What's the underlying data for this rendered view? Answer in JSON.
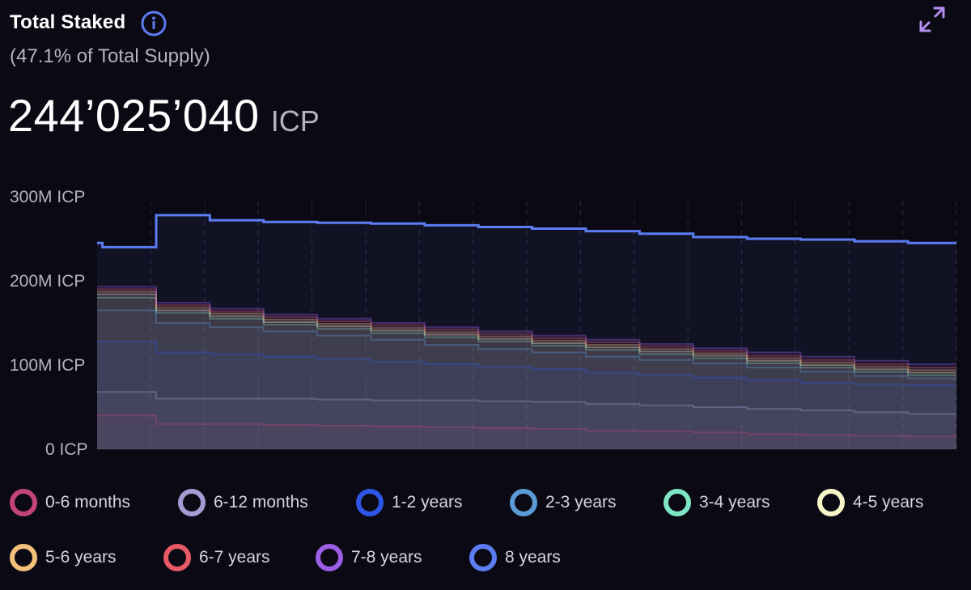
{
  "header": {
    "title": "Total Staked",
    "subtitle": "(47.1% of Total Supply)",
    "value": "244’025’040",
    "unit": "ICP",
    "info_icon": "info-icon",
    "expand_icon": "expand-icon"
  },
  "colors": {
    "background": "#0b0a14",
    "total_line": "#5b7cf2",
    "grid": "#2a2938"
  },
  "legend": [
    {
      "label": "0-6 months",
      "color": "#c2437a"
    },
    {
      "label": "6-12 months",
      "color": "#a59bd4"
    },
    {
      "label": "1-2 years",
      "color": "#2f56e8"
    },
    {
      "label": "2-3 years",
      "color": "#5b9bd6"
    },
    {
      "label": "3-4 years",
      "color": "#7ee6c4"
    },
    {
      "label": "4-5 years",
      "color": "#f6f6c8"
    },
    {
      "label": "5-6 years",
      "color": "#f2c07a"
    },
    {
      "label": "6-7 years",
      "color": "#e85a66"
    },
    {
      "label": "7-8 years",
      "color": "#9b5ee6"
    },
    {
      "label": "8 years",
      "color": "#5b7cf2"
    }
  ],
  "chart_data": {
    "type": "area",
    "y_ticks": [
      "0 ICP",
      "100M ICP",
      "200M ICP",
      "300M ICP"
    ],
    "y_tick_values": [
      0,
      100,
      200,
      300
    ],
    "ylim": [
      0,
      300
    ],
    "x_count": 17,
    "grid": "vertical dashed",
    "series": [
      {
        "name": "0-6 months",
        "color": "#c2437a",
        "values": [
          40,
          40,
          30,
          30,
          29,
          28,
          27,
          26,
          25,
          24,
          22,
          21,
          20,
          18,
          17,
          16,
          15
        ]
      },
      {
        "name": "6-12 months",
        "color": "#a59bd4",
        "values": [
          68,
          68,
          60,
          60,
          60,
          59,
          58,
          58,
          57,
          56,
          54,
          52,
          50,
          48,
          46,
          44,
          42
        ]
      },
      {
        "name": "1-2 years",
        "color": "#2f56e8",
        "values": [
          128,
          128,
          115,
          113,
          110,
          107,
          104,
          101,
          98,
          95,
          91,
          88,
          85,
          82,
          79,
          77,
          76
        ]
      },
      {
        "name": "2-3 years",
        "color": "#5b9bd6",
        "values": [
          165,
          165,
          150,
          145,
          140,
          135,
          130,
          124,
          119,
          115,
          110,
          106,
          102,
          97,
          92,
          87,
          84
        ]
      },
      {
        "name": "3-4 years",
        "color": "#7ee6c4",
        "values": [
          180,
          180,
          162,
          155,
          148,
          143,
          138,
          133,
          128,
          123,
          118,
          113,
          108,
          102,
          97,
          92,
          88
        ]
      },
      {
        "name": "4-5 years",
        "color": "#f6f6c8",
        "values": [
          184,
          184,
          165,
          158,
          151,
          146,
          141,
          136,
          131,
          126,
          121,
          116,
          111,
          105,
          100,
          95,
          91
        ]
      },
      {
        "name": "5-6 years",
        "color": "#f2c07a",
        "values": [
          187,
          187,
          168,
          161,
          154,
          149,
          144,
          139,
          134,
          129,
          124,
          119,
          114,
          108,
          103,
          98,
          94
        ]
      },
      {
        "name": "6-7 years",
        "color": "#e85a66",
        "values": [
          190,
          190,
          171,
          164,
          157,
          152,
          147,
          142,
          137,
          132,
          127,
          122,
          117,
          111,
          106,
          101,
          97
        ]
      },
      {
        "name": "7-8 years",
        "color": "#9b5ee6",
        "values": [
          193,
          193,
          174,
          167,
          160,
          155,
          150,
          145,
          140,
          135,
          130,
          125,
          120,
          115,
          110,
          105,
          101
        ]
      },
      {
        "name": "8 years",
        "color": "#5b7cf2",
        "values": [
          245,
          240,
          278,
          272,
          270,
          269,
          268,
          266,
          264,
          262,
          259,
          256,
          252,
          250,
          249,
          247,
          245
        ]
      }
    ]
  }
}
